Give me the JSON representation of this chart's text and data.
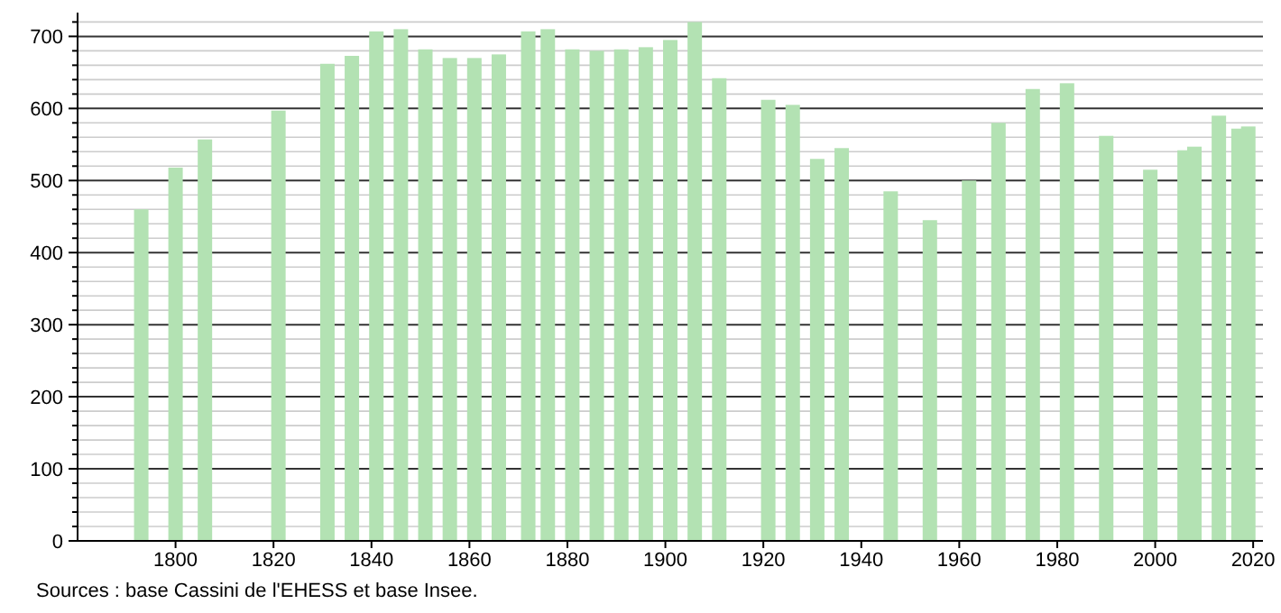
{
  "chart_data": {
    "type": "bar",
    "x": [
      1793,
      1800,
      1806,
      1821,
      1831,
      1836,
      1841,
      1846,
      1851,
      1856,
      1861,
      1866,
      1872,
      1876,
      1881,
      1886,
      1891,
      1896,
      1901,
      1906,
      1911,
      1921,
      1926,
      1931,
      1936,
      1946,
      1954,
      1962,
      1968,
      1975,
      1982,
      1990,
      1999,
      2006,
      2008,
      2013,
      2017,
      2019
    ],
    "values": [
      460,
      518,
      557,
      597,
      662,
      673,
      707,
      710,
      682,
      670,
      670,
      675,
      707,
      710,
      682,
      680,
      682,
      685,
      695,
      720,
      642,
      612,
      605,
      530,
      545,
      485,
      445,
      500,
      580,
      627,
      635,
      562,
      515,
      542,
      547,
      590,
      572,
      575
    ],
    "color": "#b3e2b3",
    "xlim": [
      1780,
      2022
    ],
    "xticks": [
      1800,
      1820,
      1840,
      1860,
      1880,
      1900,
      1920,
      1940,
      1960,
      1980,
      2000,
      2020
    ],
    "ylim": [
      0,
      733
    ],
    "yticks": [
      0,
      {
        "value": 20,
        "label": null
      },
      {
        "value": 40,
        "label": null
      },
      {
        "value": 60,
        "label": null
      },
      {
        "value": 80,
        "label": null
      },
      100,
      {
        "value": 120,
        "label": null
      },
      {
        "value": 140,
        "label": null
      },
      {
        "value": 160,
        "label": null
      },
      {
        "value": 180,
        "label": null
      },
      200,
      {
        "value": 220,
        "label": null
      },
      {
        "value": 240,
        "label": null
      },
      {
        "value": 260,
        "label": null
      },
      {
        "value": 280,
        "label": null
      },
      300,
      {
        "value": 320,
        "label": null
      },
      {
        "value": 340,
        "label": null
      },
      {
        "value": 360,
        "label": null
      },
      {
        "value": 380,
        "label": null
      },
      400,
      {
        "value": 420,
        "label": null
      },
      {
        "value": 440,
        "label": null
      },
      {
        "value": 460,
        "label": null
      },
      {
        "value": 480,
        "label": null
      },
      500,
      {
        "value": 520,
        "label": null
      },
      {
        "value": 540,
        "label": null
      },
      {
        "value": 560,
        "label": null
      },
      {
        "value": 580,
        "label": null
      },
      600,
      {
        "value": 620,
        "label": null
      },
      {
        "value": 640,
        "label": null
      },
      {
        "value": 660,
        "label": null
      },
      {
        "value": 680,
        "label": null
      },
      700,
      {
        "value": 720,
        "label": null
      }
    ],
    "grid": "y",
    "annotations": [
      "Sources : base Cassini de l'EHESS et base Insee."
    ]
  }
}
